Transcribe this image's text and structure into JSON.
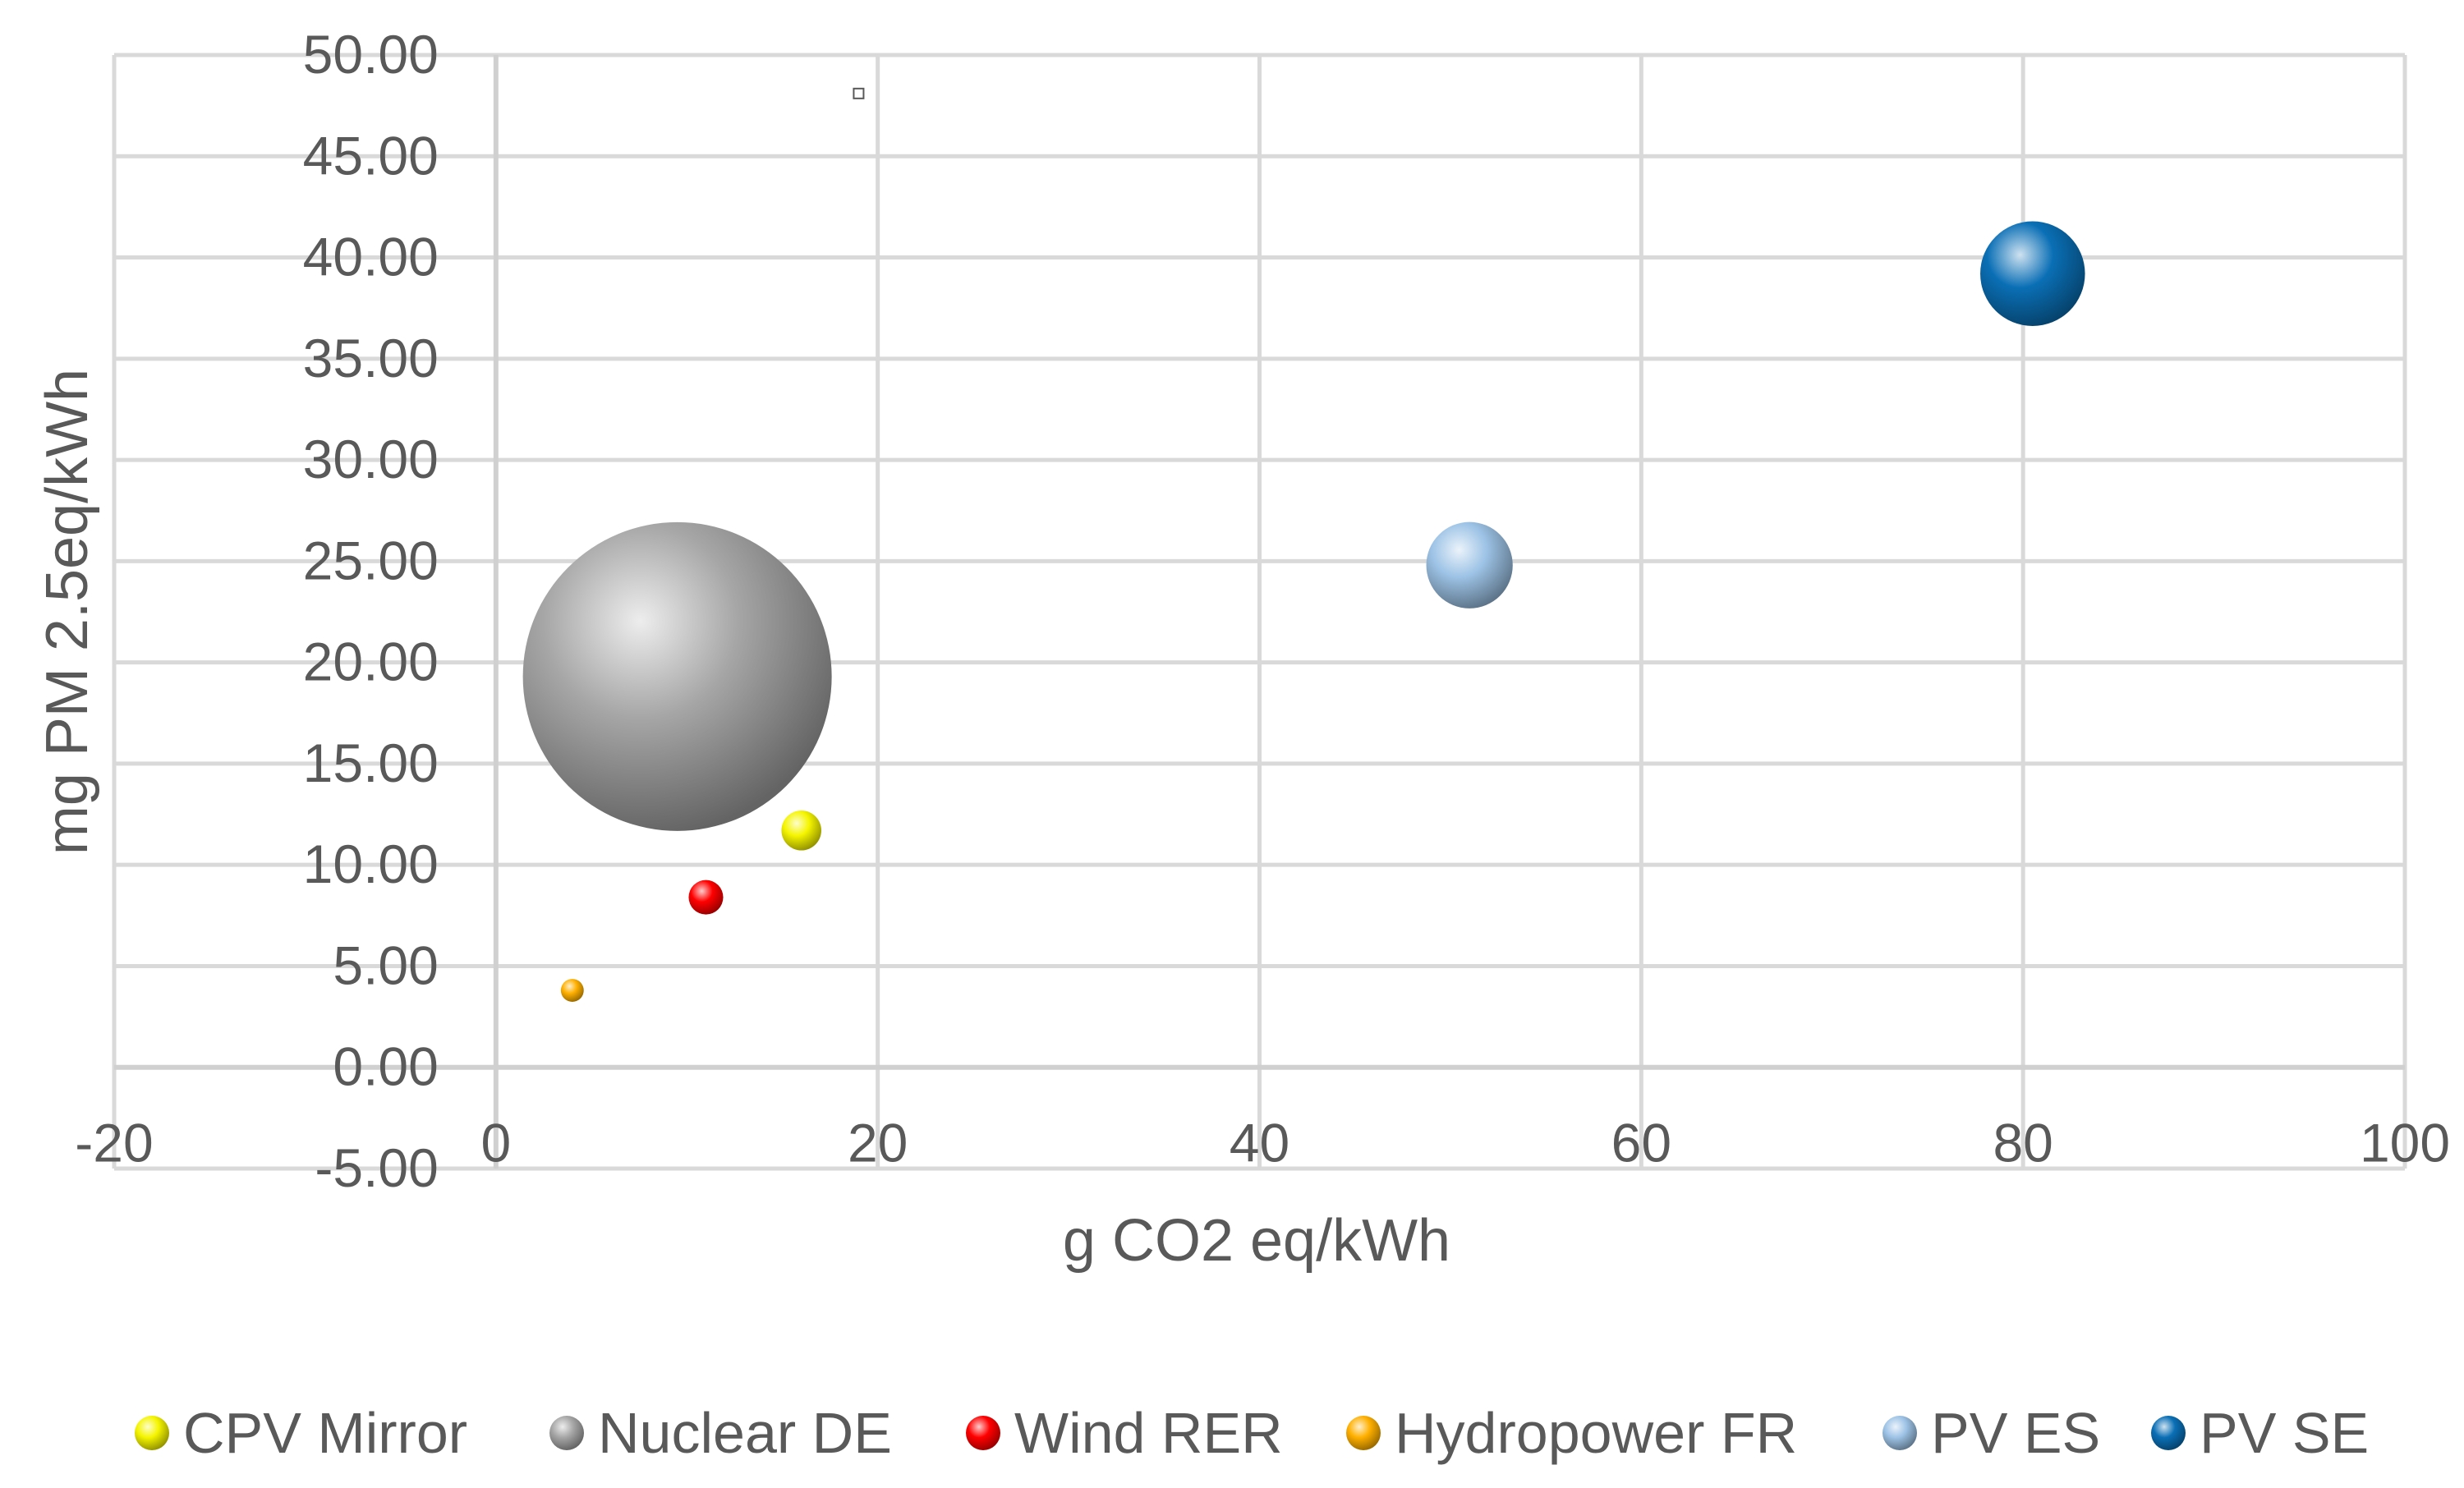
{
  "chart_data": {
    "type": "bubble",
    "title": "",
    "xlabel": "g CO2 eq/kWh",
    "ylabel": "mg PM 2.5eq/kWh",
    "xlim": [
      -20,
      100
    ],
    "ylim": [
      -5,
      50
    ],
    "x_ticks": [
      -20,
      0,
      20,
      40,
      60,
      80,
      100
    ],
    "x_tick_labels": [
      "-20",
      "0",
      "20",
      "40",
      "60",
      "80",
      "100"
    ],
    "y_ticks": [
      -5,
      0,
      5,
      10,
      15,
      20,
      25,
      30,
      35,
      40,
      45,
      50
    ],
    "y_tick_labels": [
      "-5.00",
      "0.00",
      "5.00",
      "10.00",
      "15.00",
      "20.00",
      "25.00",
      "30.00",
      "35.00",
      "40.00",
      "45.00",
      "50.00"
    ],
    "grid": true,
    "legend_position": "bottom",
    "series": [
      {
        "name": "CPV Mirror",
        "x": 16,
        "y": 11.7,
        "size": 1.0,
        "color": "#f5f500"
      },
      {
        "name": "Nuclear DE",
        "x": 9.5,
        "y": 19.3,
        "size": 60.0,
        "color": "#a6a6a6"
      },
      {
        "name": "Wind RER",
        "x": 11,
        "y": 8.4,
        "size": 0.75,
        "color": "#ff0000"
      },
      {
        "name": "Hydropower FR",
        "x": 4,
        "y": 3.8,
        "size": 0.33,
        "color": "#ffb000"
      },
      {
        "name": "PV ES",
        "x": 51,
        "y": 24.8,
        "size": 4.7,
        "color": "#9dc3e6"
      },
      {
        "name": "PV SE",
        "x": 80.5,
        "y": 39.2,
        "size": 6.9,
        "color": "#0a6fb5"
      }
    ],
    "stray_marker": {
      "x": 19,
      "y": 48.1
    }
  }
}
